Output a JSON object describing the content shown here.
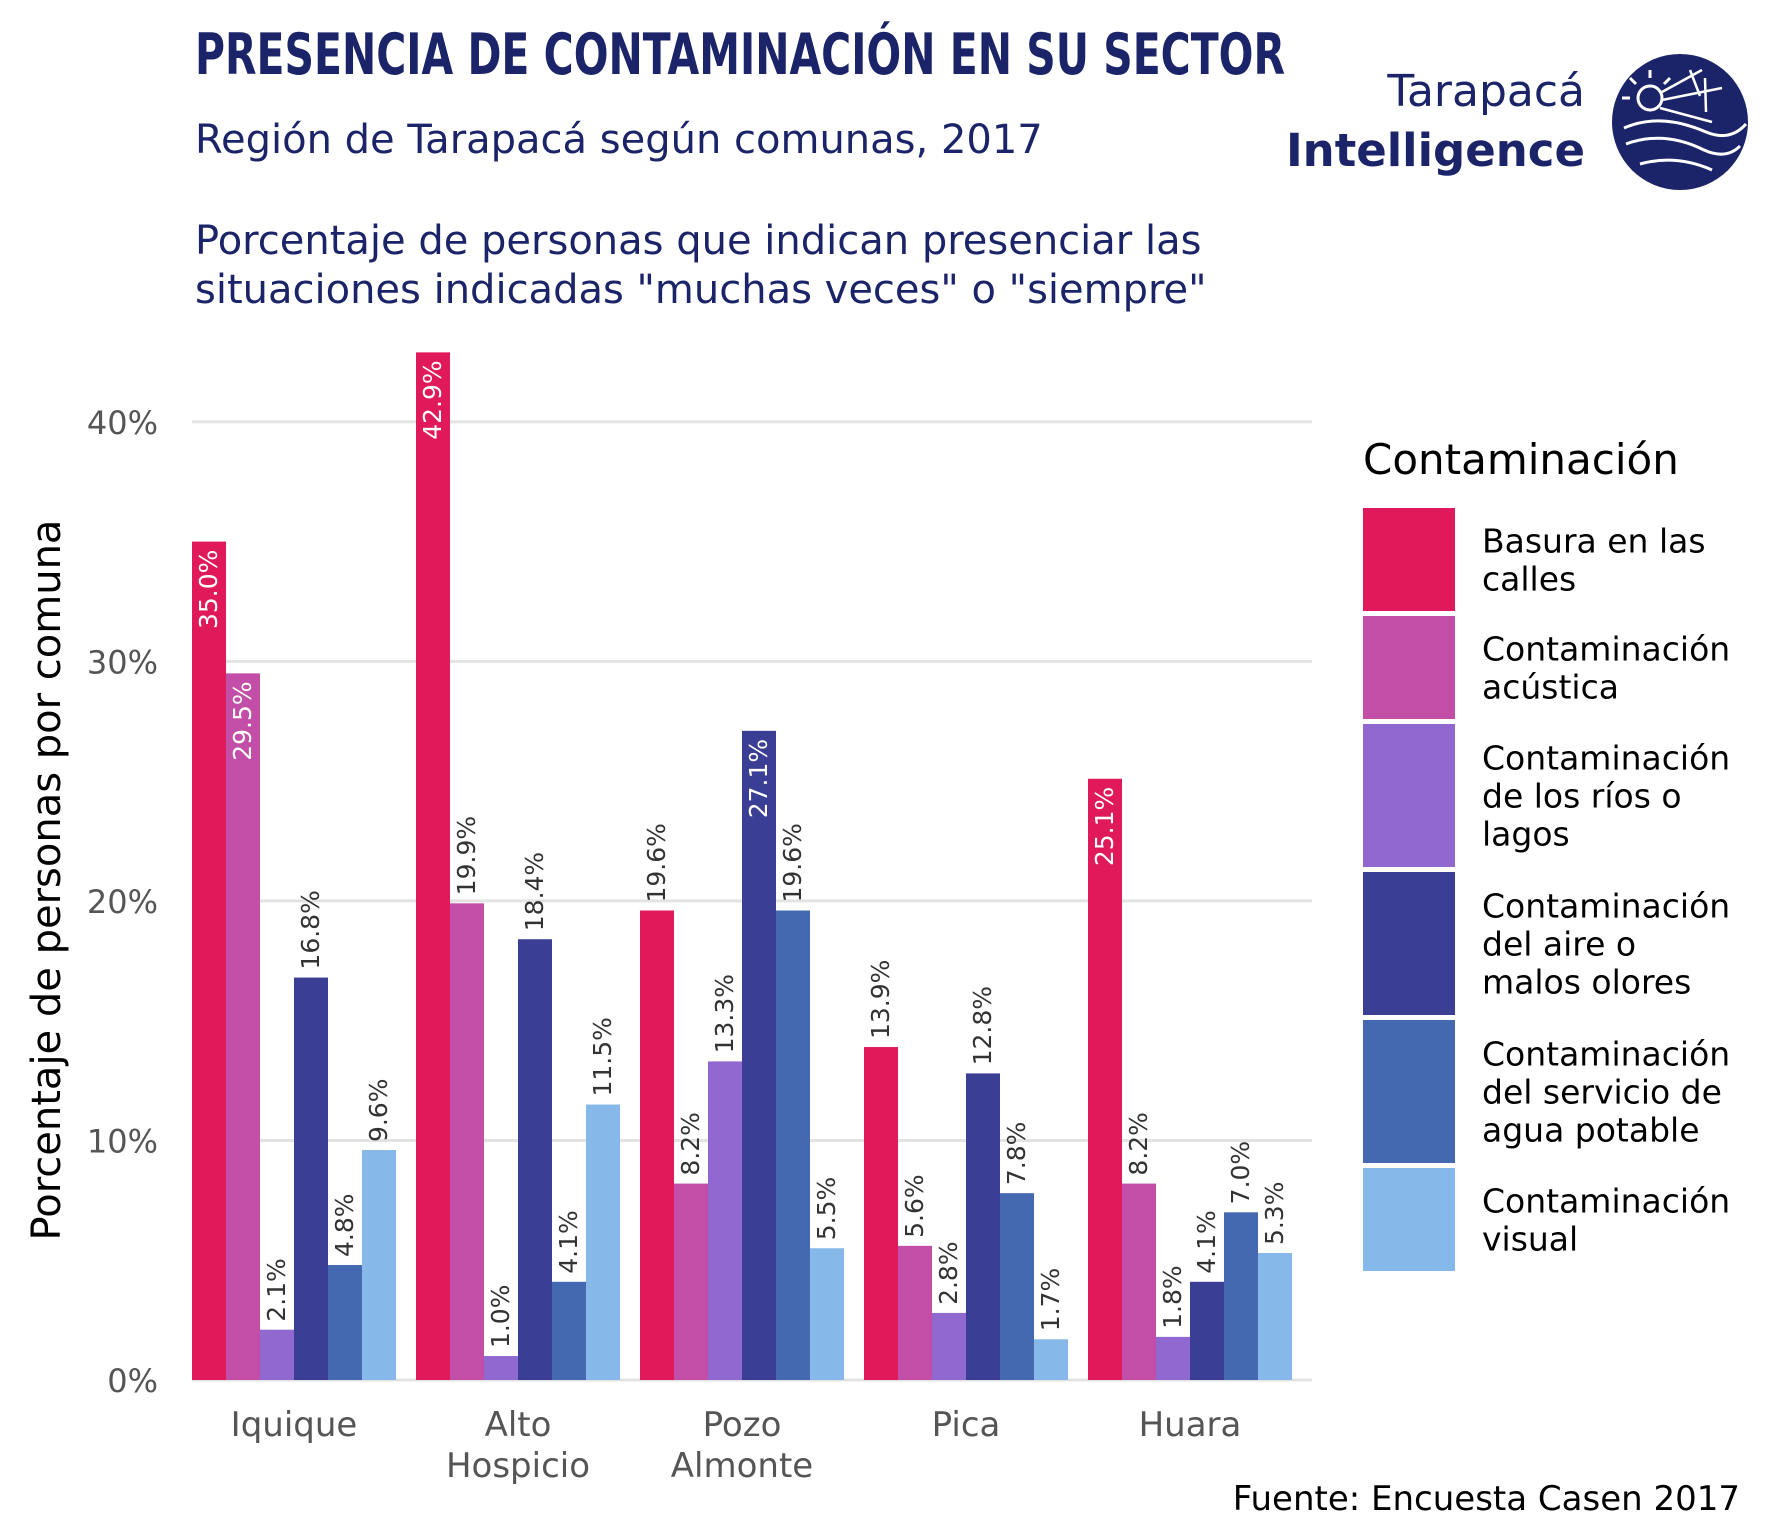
{
  "header": {
    "title": "PRESENCIA DE CONTAMINACIÓN EN SU SECTOR",
    "subtitle": "Región de Tarapacá según comunas, 2017",
    "description_line1": "Porcentaje de personas que indican presenciar las",
    "description_line2": "situaciones indicadas \"muchas veces\" o \"siempre\""
  },
  "logo": {
    "line1": "Tarapacá",
    "line2": "Intelligence",
    "icon": "tarapaca-intelligence-logo-icon",
    "color": "#1B2468"
  },
  "source": "Fuente: Encuesta Casen 2017",
  "colors": {
    "title": "#1B2468",
    "text": "#333333",
    "tick": "#555555",
    "grid": "#E3E3E3"
  },
  "chart_data": {
    "type": "bar",
    "ylabel": "Porcentaje de personas por comuna",
    "xlabel": "",
    "ylim": [
      0,
      43.5
    ],
    "yticks": [
      0,
      10,
      20,
      30,
      40
    ],
    "ytick_labels": [
      "0%",
      "10%",
      "20%",
      "30%",
      "40%"
    ],
    "grid": "horizontal",
    "legend_position": "right",
    "legend_title": "Contaminación",
    "categories": [
      [
        "Iquique"
      ],
      [
        "Alto",
        "Hospicio"
      ],
      [
        "Pozo",
        "Almonte"
      ],
      [
        "Pica"
      ],
      [
        "Huara"
      ]
    ],
    "series": [
      {
        "name": "Basura en las calles",
        "legend_lines": [
          "Basura en las",
          "calles"
        ],
        "color": "#E0195A",
        "values": [
          35.0,
          42.9,
          19.6,
          13.9,
          25.1
        ],
        "labels": [
          "35.0%",
          "42.9%",
          "19.6%",
          "13.9%",
          "25.1%"
        ]
      },
      {
        "name": "Contaminación acústica",
        "legend_lines": [
          "Contaminación",
          "acústica"
        ],
        "color": "#C24EA8",
        "values": [
          29.5,
          19.9,
          8.2,
          5.6,
          8.2
        ],
        "labels": [
          "29.5%",
          "19.9%",
          "8.2%",
          "5.6%",
          "8.2%"
        ]
      },
      {
        "name": "Contaminación de los ríos o lagos",
        "legend_lines": [
          "Contaminación",
          "de los ríos o",
          "lagos"
        ],
        "color": "#9068CF",
        "values": [
          2.1,
          1.0,
          13.3,
          2.8,
          1.8
        ],
        "labels": [
          "2.1%",
          "1.0%",
          "13.3%",
          "2.8%",
          "1.8%"
        ]
      },
      {
        "name": "Contaminación del aire o malos olores",
        "legend_lines": [
          "Contaminación",
          "del aire o",
          "malos olores"
        ],
        "color": "#3A3F95",
        "values": [
          16.8,
          18.4,
          27.1,
          12.8,
          4.1
        ],
        "labels": [
          "16.8%",
          "18.4%",
          "27.1%",
          "12.8%",
          "4.1%"
        ]
      },
      {
        "name": "Contaminación del servicio de agua potable",
        "legend_lines": [
          "Contaminación",
          "del servicio de",
          "agua potable"
        ],
        "color": "#4569B0",
        "values": [
          4.8,
          4.1,
          19.6,
          7.8,
          7.0
        ],
        "labels": [
          "4.8%",
          "4.1%",
          "19.6%",
          "7.8%",
          "7.0%"
        ]
      },
      {
        "name": "Contaminación visual",
        "legend_lines": [
          "Contaminación",
          "visual"
        ],
        "color": "#86B8E9",
        "values": [
          9.6,
          11.5,
          5.5,
          1.7,
          5.3
        ],
        "labels": [
          "9.6%",
          "11.5%",
          "5.5%",
          "1.7%",
          "5.3%"
        ]
      }
    ],
    "inside_label_threshold": 20
  }
}
